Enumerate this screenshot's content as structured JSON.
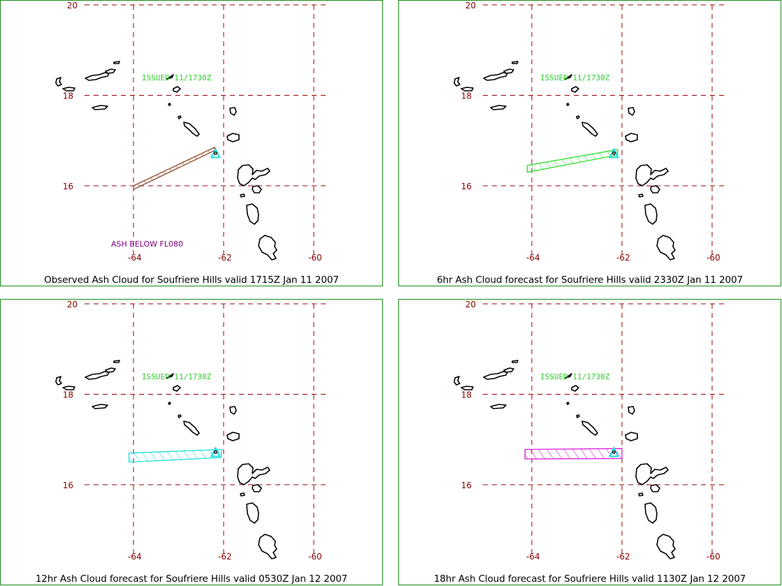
{
  "panels": [
    {
      "caption": "Observed Ash Cloud for Soufriere  Hills valid 1715Z Jan 11 2007",
      "issued": "ISSUED 11/1730Z",
      "note": "ASH BELOW FL080",
      "cloud_color": "#8a4a2a",
      "cloud_polygon": [
        [
          -64.0,
          16.0
        ],
        [
          -62.2,
          16.85
        ],
        [
          -62.2,
          16.78
        ],
        [
          -64.0,
          15.92
        ]
      ]
    },
    {
      "caption": "6hr Ash Cloud forecast for Soufriere  Hills valid 2330Z Jan 11 2007",
      "issued": "ISSUED 11/1730Z",
      "note": "",
      "cloud_color": "#33dd33",
      "cloud_polygon": [
        [
          -64.1,
          16.45
        ],
        [
          -62.1,
          16.8
        ],
        [
          -62.1,
          16.68
        ],
        [
          -64.1,
          16.3
        ]
      ]
    },
    {
      "caption": "12hr Ash Cloud forecast for Soufriere  Hills valid 0530Z Jan 12 2007",
      "issued": "ISSUED 11/1730Z",
      "note": "",
      "cloud_color": "#22dddd",
      "cloud_polygon": [
        [
          -64.1,
          16.7
        ],
        [
          -62.05,
          16.78
        ],
        [
          -62.05,
          16.6
        ],
        [
          -64.1,
          16.5
        ]
      ]
    },
    {
      "caption": "18hr Ash Cloud forecast for Soufriere  Hills valid 1130Z Jan 12 2007",
      "issued": "ISSUED 11/1730Z",
      "note": "",
      "cloud_color": "#dd22dd",
      "cloud_polygon": [
        [
          -64.15,
          16.78
        ],
        [
          -62.0,
          16.8
        ],
        [
          -62.0,
          16.58
        ],
        [
          -64.15,
          16.57
        ]
      ]
    }
  ],
  "map": {
    "lon_ticks": [
      "-64",
      "-62",
      "-60"
    ],
    "lat_ticks": [
      "20",
      "18",
      "16"
    ],
    "volcano_lon": -62.18,
    "volcano_lat": 16.72,
    "grid_color": "#990000",
    "label_color": "#880000",
    "issued_color": "#33cc33",
    "note_color": "#800080"
  }
}
